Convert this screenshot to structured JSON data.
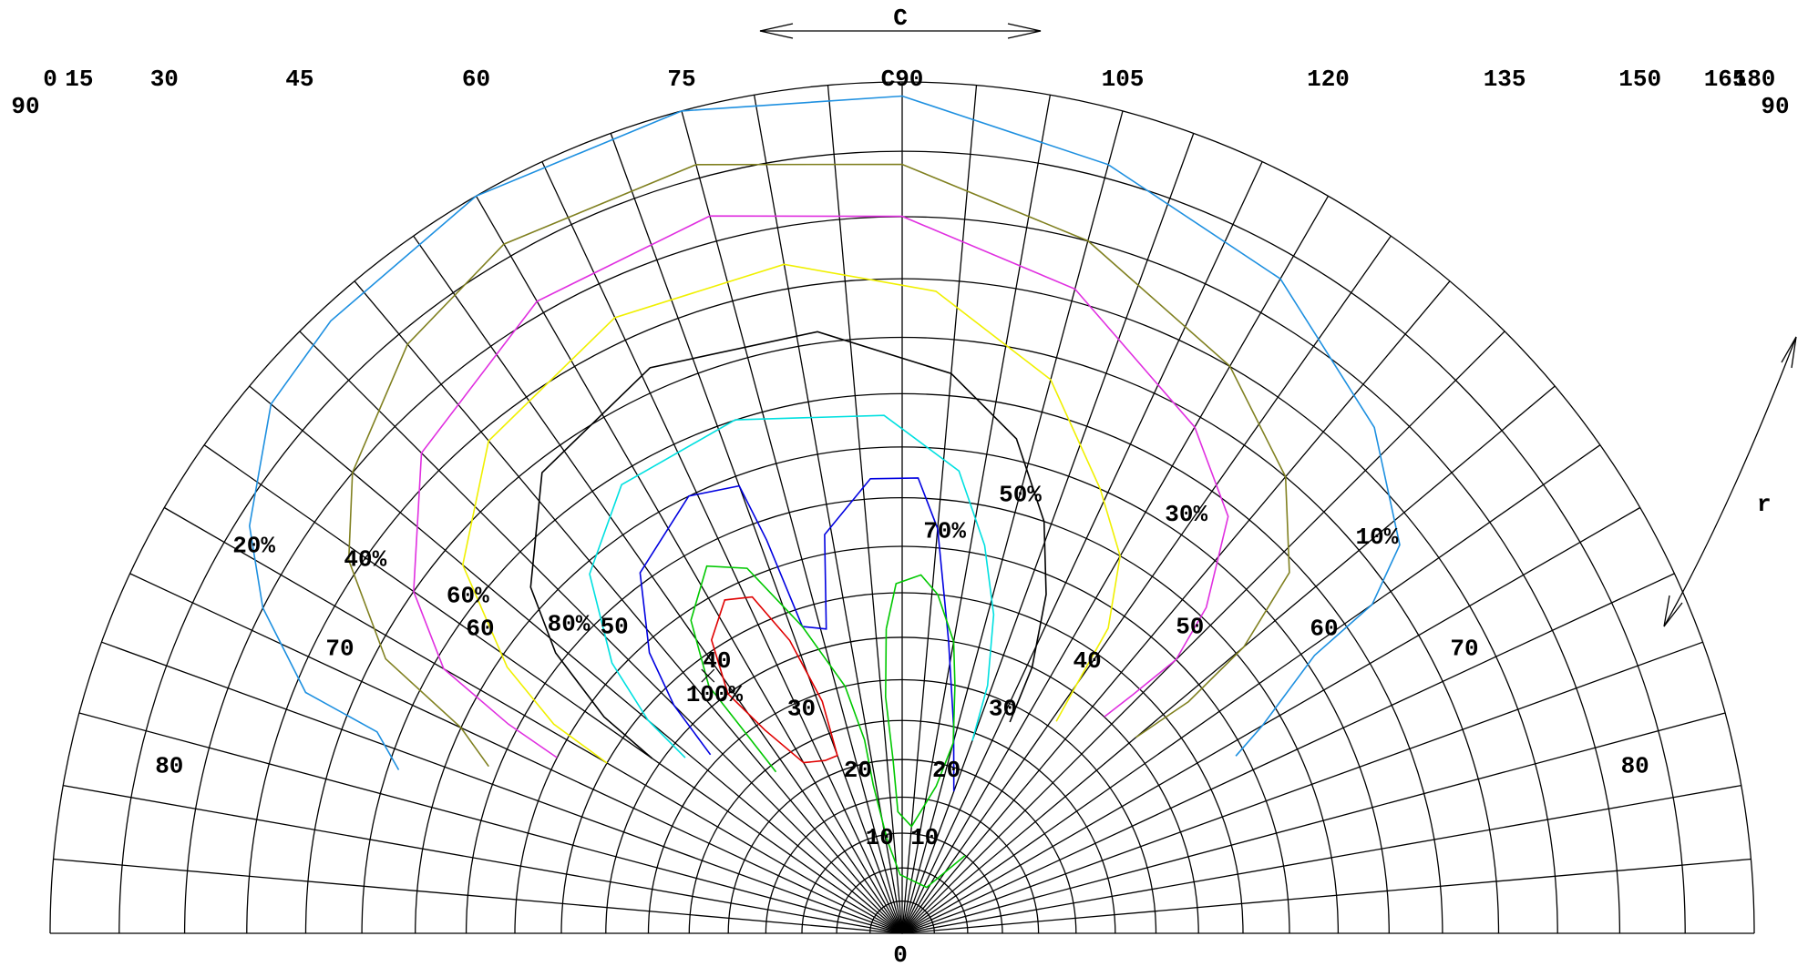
{
  "chart_data": {
    "type": "polar-isocandela",
    "c_axis": {
      "label": "C",
      "range": [
        0,
        180
      ],
      "ticks": [
        {
          "value": 0,
          "label": "0"
        },
        {
          "value": 15,
          "label": "15"
        },
        {
          "value": 30,
          "label": "30"
        },
        {
          "value": 45,
          "label": "45"
        },
        {
          "value": 60,
          "label": "60"
        },
        {
          "value": 75,
          "label": "75"
        },
        {
          "value": 90,
          "label": "C90"
        },
        {
          "value": 105,
          "label": "105"
        },
        {
          "value": 120,
          "label": "120"
        },
        {
          "value": 135,
          "label": "135"
        },
        {
          "value": 150,
          "label": "150"
        },
        {
          "value": 165,
          "label": "165"
        },
        {
          "value": 180,
          "label": "180"
        }
      ]
    },
    "r_axis": {
      "label": "r",
      "range": [
        0,
        90
      ],
      "left_ticks": [
        {
          "value": 90,
          "label": "90"
        },
        {
          "value": 80,
          "label": "80"
        },
        {
          "value": 70,
          "label": "70"
        },
        {
          "value": 60,
          "label": "60"
        },
        {
          "value": 50,
          "label": "50"
        },
        {
          "value": 40,
          "label": "40"
        },
        {
          "value": 30,
          "label": "30"
        },
        {
          "value": 20,
          "label": "20"
        },
        {
          "value": 10,
          "label": "10"
        }
      ],
      "center_label": "0",
      "right_ticks": [
        {
          "value": 10,
          "label": "10"
        },
        {
          "value": 20,
          "label": "20"
        },
        {
          "value": 30,
          "label": "30"
        },
        {
          "value": 40,
          "label": "40"
        },
        {
          "value": 50,
          "label": "50"
        },
        {
          "value": 60,
          "label": "60"
        },
        {
          "value": 70,
          "label": "70"
        },
        {
          "value": 80,
          "label": "80"
        },
        {
          "value": 90,
          "label": "90"
        }
      ]
    },
    "grid": true,
    "series": [
      {
        "name": "10%",
        "color": "#1e90e0",
        "points": [
          [
            18,
            64
          ],
          [
            21,
            67
          ],
          [
            22,
            74
          ],
          [
            27,
            80
          ],
          [
            32,
            84
          ],
          [
            40,
            88
          ],
          [
            47,
            89
          ],
          [
            60,
            90
          ],
          [
            75,
            90
          ],
          [
            90,
            89
          ],
          [
            105,
            86
          ],
          [
            120,
            83
          ],
          [
            133,
            78
          ],
          [
            142,
            73
          ],
          [
            145,
            68
          ],
          [
            146,
            61
          ],
          [
            150,
            53
          ],
          [
            152,
            49
          ]
        ]
      },
      {
        "name": "20%",
        "color": "#808020",
        "points": [
          [
            22,
            56
          ],
          [
            25,
            60
          ],
          [
            28,
            69
          ],
          [
            34,
            76
          ],
          [
            40,
            80
          ],
          [
            50,
            84
          ],
          [
            60,
            86
          ],
          [
            75,
            86
          ],
          [
            90,
            84
          ],
          [
            105,
            80
          ],
          [
            120,
            75
          ],
          [
            130,
            70
          ],
          [
            137,
            64
          ],
          [
            140,
            56
          ],
          [
            141,
            48
          ],
          [
            140,
            41
          ]
        ]
      },
      {
        "name": "30%",
        "color": "#e030e0",
        "points": [
          [
            27,
            50
          ],
          [
            28,
            56
          ],
          [
            30,
            64
          ],
          [
            35,
            70
          ],
          [
            45,
            77
          ],
          [
            60,
            81
          ],
          [
            75,
            82
          ],
          [
            90,
            80
          ],
          [
            105,
            76
          ],
          [
            120,
            69
          ],
          [
            128,
            64
          ],
          [
            133,
            56
          ],
          [
            135,
            50
          ],
          [
            134,
            44
          ],
          [
            133,
            40
          ]
        ]
      },
      {
        "name": "40%",
        "color": "#f0f000",
        "points": [
          [
            30,
            45
          ],
          [
            31,
            52
          ],
          [
            34,
            59
          ],
          [
            40,
            68
          ],
          [
            50,
            74
          ],
          [
            65,
            77
          ],
          [
            80,
            77
          ],
          [
            93,
            74
          ],
          [
            105,
            68
          ],
          [
            114,
            60
          ],
          [
            120,
            55
          ],
          [
            124,
            48
          ],
          [
            125,
            41
          ],
          [
            126,
            36
          ]
        ]
      },
      {
        "name": "50%",
        "color": "#000000",
        "points": [
          [
            35,
            41
          ],
          [
            36,
            48
          ],
          [
            39,
            56
          ],
          [
            43,
            62
          ],
          [
            52,
            69
          ],
          [
            66,
            72
          ],
          [
            82,
            71
          ],
          [
            95,
            67
          ],
          [
            103,
            62
          ],
          [
            109,
            55
          ],
          [
            113,
            48
          ],
          [
            116,
            40
          ],
          [
            117,
            33
          ]
        ]
      },
      {
        "name": "60%",
        "color": "#00e0e0",
        "points": [
          [
            39,
            38
          ],
          [
            40,
            44
          ],
          [
            43,
            51
          ],
          [
            49,
            59
          ],
          [
            58,
            64
          ],
          [
            72,
            65
          ],
          [
            88,
            63
          ],
          [
            97,
            58
          ],
          [
            102,
            51
          ],
          [
            106,
            44
          ],
          [
            109,
            36
          ],
          [
            110,
            29
          ]
        ]
      },
      {
        "name": "70%",
        "color": "#0000e0",
        "points": [
          [
            43,
            36
          ],
          [
            45,
            43
          ],
          [
            48,
            49
          ],
          [
            54,
            56
          ],
          [
            64,
            60
          ],
          [
            70,
            59
          ],
          [
            71,
            53
          ],
          [
            72,
            43
          ],
          [
            76,
            42
          ],
          [
            79,
            52
          ],
          [
            86,
            57
          ],
          [
            92,
            57
          ],
          [
            95,
            52
          ],
          [
            99,
            40
          ],
          [
            104,
            30
          ],
          [
            110,
            22
          ]
        ]
      },
      {
        "name": "80%",
        "color": "#00c800",
        "points": [
          [
            52,
            29
          ],
          [
            52,
            36
          ],
          [
            52,
            42
          ],
          [
            56,
            49
          ],
          [
            62,
            53
          ],
          [
            67,
            51
          ],
          [
            72,
            43
          ],
          [
            77,
            35
          ],
          [
            79,
            28
          ],
          [
            79,
            22
          ],
          [
            81,
            14
          ],
          [
            88,
            9
          ],
          [
            118,
            8
          ],
          [
            129,
            15
          ]
        ]
      },
      {
        "name": "80% (inner)",
        "color": "#00c800",
        "points": [
          [
            87,
            41
          ],
          [
            89,
            46
          ],
          [
            93,
            47
          ],
          [
            96,
            45
          ],
          [
            100,
            40
          ],
          [
            102,
            35
          ],
          [
            105,
            28
          ],
          [
            103,
            22
          ],
          [
            95,
            16
          ],
          [
            88,
            18
          ],
          [
            87,
            25
          ],
          [
            86,
            33
          ],
          [
            87,
            41
          ]
        ]
      },
      {
        "name": "100%",
        "color": "#e00000",
        "points": [
          [
            54,
            40
          ],
          [
            57,
            46
          ],
          [
            62,
            49
          ],
          [
            66,
            48
          ],
          [
            69,
            42
          ],
          [
            71,
            34
          ],
          [
            70,
            27
          ],
          [
            66,
            27
          ],
          [
            60,
            28
          ],
          [
            56,
            34
          ],
          [
            54,
            40
          ]
        ]
      }
    ],
    "annotations": [
      {
        "text": "10%",
        "c": 140,
        "r": 72
      },
      {
        "text": "20%",
        "c": 31,
        "r": 83
      },
      {
        "text": "30%",
        "c": 124,
        "r": 62
      },
      {
        "text": "40%",
        "c": 35,
        "r": 75
      },
      {
        "text": "50%",
        "c": 105,
        "r": 57
      },
      {
        "text": "60%",
        "c": 38,
        "r": 66
      },
      {
        "text": "70%",
        "c": 96,
        "r": 52
      },
      {
        "text": "80%",
        "c": 43,
        "r": 57
      },
      {
        "text": "100%",
        "c": 52,
        "r": 41
      }
    ],
    "max_marker": {
      "c": 53,
      "r": 43
    }
  }
}
